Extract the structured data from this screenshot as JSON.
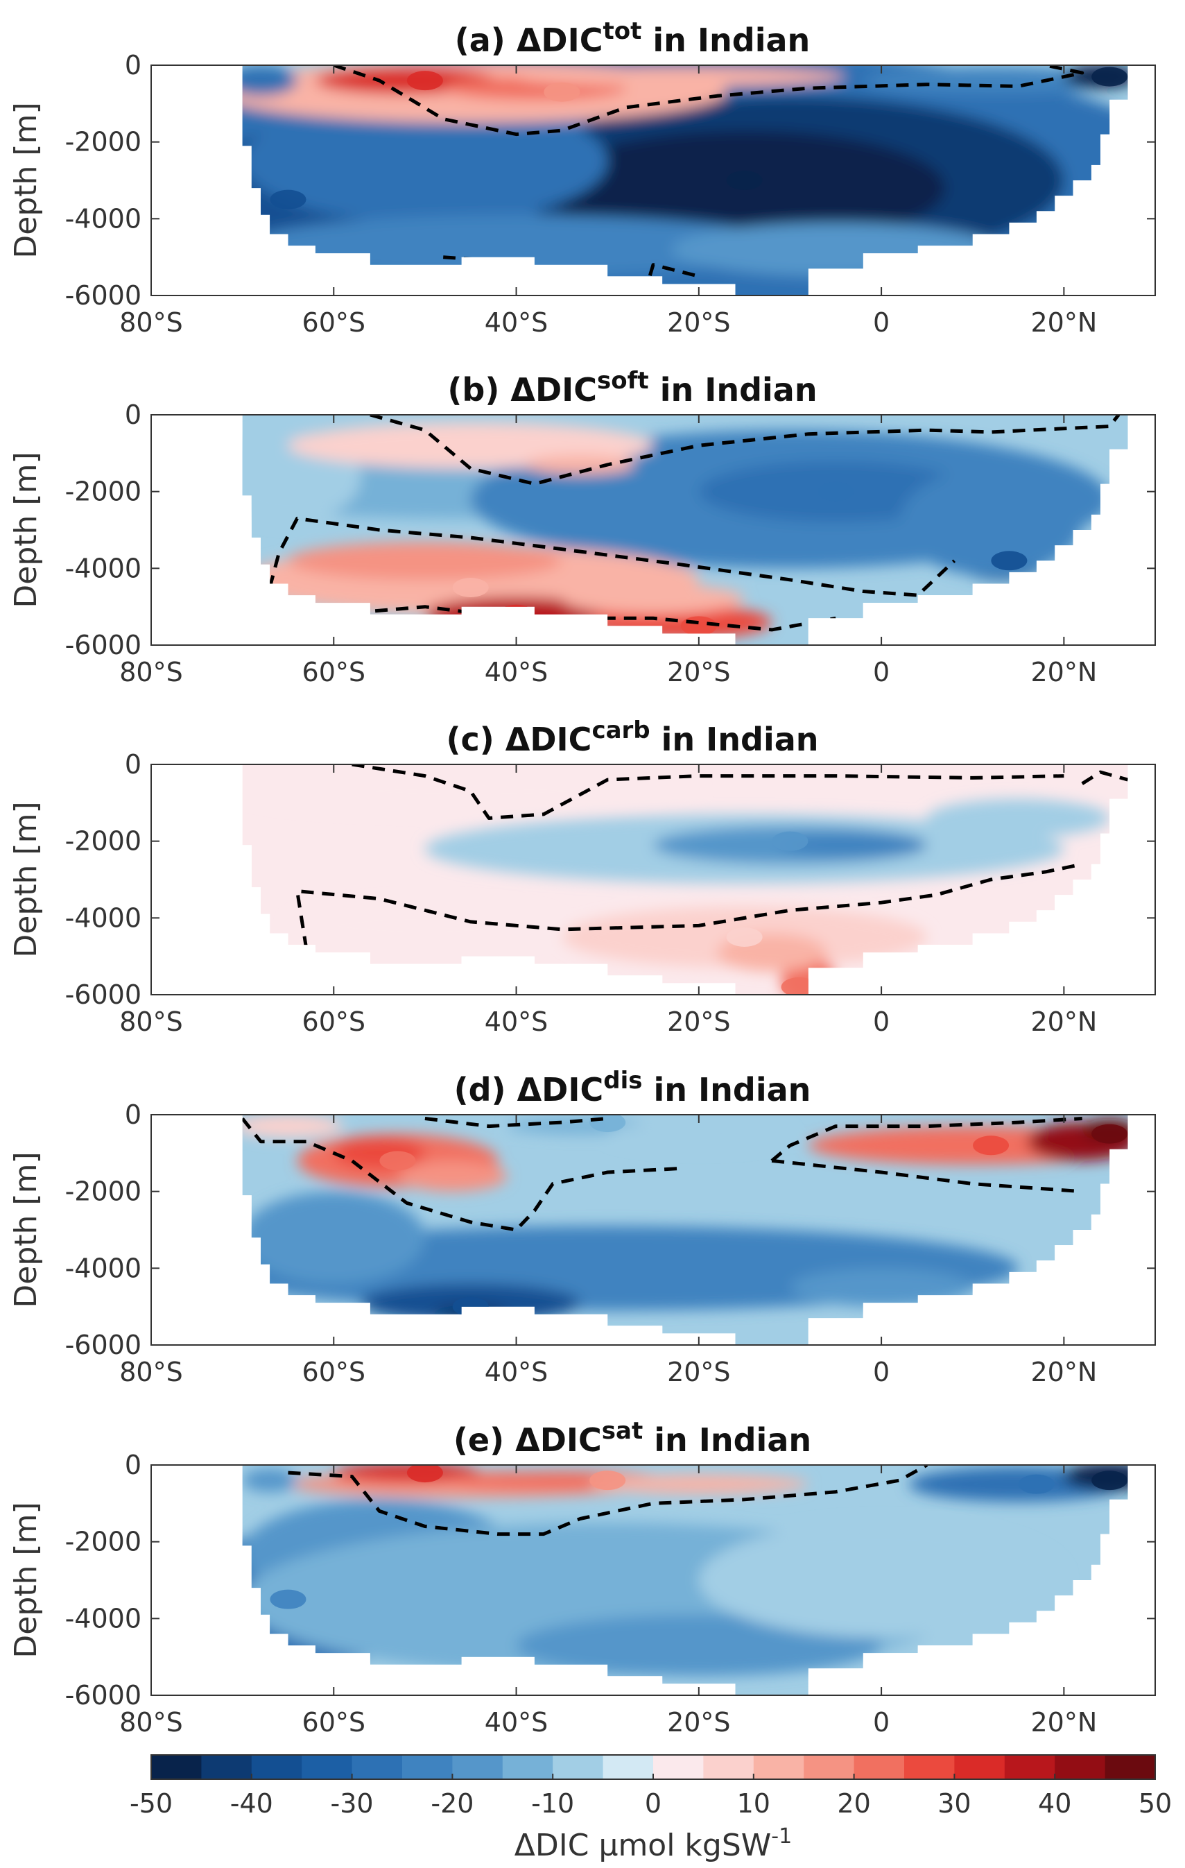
{
  "chart_data": [
    {
      "type": "heatmap",
      "panel": "(a)",
      "title": "(a) ΔDIC",
      "title_sup": "tot",
      "title_suffix": " in Indian",
      "ylabel": "Depth [m]",
      "xlim": [
        -80,
        30
      ],
      "ylim": [
        -6000,
        0
      ],
      "x_ticks": [
        "80°S",
        "60°S",
        "40°S",
        "20°S",
        "0",
        "20°N"
      ],
      "y_ticks": [
        "0",
        "-2000",
        "-4000",
        "-6000"
      ],
      "dominant_sign": "negative",
      "zero_contour": "dashed black",
      "features": [
        {
          "lat": -50,
          "depth": -400,
          "value": 30
        },
        {
          "lat": -35,
          "depth": -700,
          "value": 18
        },
        {
          "lat": -15,
          "depth": -3000,
          "value": -50
        },
        {
          "lat": 25,
          "depth": -300,
          "value": -50
        },
        {
          "lat": -65,
          "depth": -3500,
          "value": -40
        }
      ]
    },
    {
      "type": "heatmap",
      "panel": "(b)",
      "title": "(b) ΔDIC",
      "title_sup": "soft",
      "title_suffix": " in Indian",
      "ylabel": "Depth [m]",
      "xlim": [
        -80,
        30
      ],
      "ylim": [
        -6000,
        0
      ],
      "x_ticks": [
        "80°S",
        "60°S",
        "40°S",
        "20°S",
        "0",
        "20°N"
      ],
      "y_ticks": [
        "0",
        "-2000",
        "-4000",
        "-6000"
      ],
      "dominant_sign": "negative",
      "zero_contour": "dashed black",
      "features": [
        {
          "lat": -40,
          "depth": -5200,
          "value": 30
        },
        {
          "lat": -20,
          "depth": -5500,
          "value": 25
        },
        {
          "lat": -45,
          "depth": -4500,
          "value": 12
        },
        {
          "lat": -5,
          "depth": -2000,
          "value": -28
        },
        {
          "lat": 14,
          "depth": -3800,
          "value": -40
        }
      ]
    },
    {
      "type": "heatmap",
      "panel": "(c)",
      "title": "(c) ΔDIC",
      "title_sup": "carb",
      "title_suffix": " in Indian",
      "ylabel": "Depth [m]",
      "xlim": [
        -80,
        30
      ],
      "ylim": [
        -6000,
        0
      ],
      "x_ticks": [
        "80°S",
        "60°S",
        "40°S",
        "20°S",
        "0",
        "20°N"
      ],
      "y_ticks": [
        "0",
        "-2000",
        "-4000",
        "-6000"
      ],
      "dominant_sign": "weak",
      "zero_contour": "dashed black",
      "features": [
        {
          "lat": -10,
          "depth": -2000,
          "value": -18
        },
        {
          "lat": -9,
          "depth": -5800,
          "value": 20
        },
        {
          "lat": -15,
          "depth": -4500,
          "value": 8
        }
      ]
    },
    {
      "type": "heatmap",
      "panel": "(d)",
      "title": "(d) ΔDIC",
      "title_sup": "dis",
      "title_suffix": " in Indian",
      "ylabel": "Depth [m]",
      "xlim": [
        -80,
        30
      ],
      "ylim": [
        -6000,
        0
      ],
      "x_ticks": [
        "80°S",
        "60°S",
        "40°S",
        "20°S",
        "0",
        "20°N"
      ],
      "y_ticks": [
        "0",
        "-2000",
        "-4000",
        "-6000"
      ],
      "dominant_sign": "negative",
      "zero_contour": "dashed black",
      "features": [
        {
          "lat": -53,
          "depth": -1200,
          "value": 22
        },
        {
          "lat": 25,
          "depth": -500,
          "value": 45
        },
        {
          "lat": 12,
          "depth": -800,
          "value": 25
        },
        {
          "lat": -45,
          "depth": -5000,
          "value": -40
        },
        {
          "lat": -30,
          "depth": -200,
          "value": -12
        }
      ]
    },
    {
      "type": "heatmap",
      "panel": "(e)",
      "title": "(e) ΔDIC",
      "title_sup": "sat",
      "title_suffix": " in Indian",
      "ylabel": "Depth [m]",
      "xlim": [
        -80,
        30
      ],
      "ylim": [
        -6000,
        0
      ],
      "x_ticks": [
        "80°S",
        "60°S",
        "40°S",
        "20°S",
        "0",
        "20°N"
      ],
      "y_ticks": [
        "0",
        "-2000",
        "-4000",
        "-6000"
      ],
      "dominant_sign": "negative",
      "zero_contour": "dashed black",
      "features": [
        {
          "lat": -50,
          "depth": -200,
          "value": 30
        },
        {
          "lat": -30,
          "depth": -400,
          "value": 15
        },
        {
          "lat": 25,
          "depth": -400,
          "value": -50
        },
        {
          "lat": 17,
          "depth": -500,
          "value": -30
        },
        {
          "lat": -65,
          "depth": -3500,
          "value": -25
        }
      ]
    }
  ],
  "colorbar": {
    "ticks": [
      "-50",
      "-40",
      "-30",
      "-20",
      "-10",
      "0",
      "10",
      "20",
      "30",
      "40",
      "50"
    ],
    "label": "ΔDIC μmol kgSW",
    "label_sup": "-1",
    "range": [
      -50,
      50
    ],
    "levels": 20,
    "colors": [
      "#08234b",
      "#0d3a72",
      "#134f92",
      "#1c5fa5",
      "#2d71b4",
      "#3f83c0",
      "#5596ca",
      "#76b1d7",
      "#a2cee5",
      "#d3e9f4",
      "#fbe9ec",
      "#fbd1cd",
      "#f9b3a6",
      "#f59383",
      "#f17060",
      "#eb4a3e",
      "#da2b28",
      "#b8171c",
      "#930d14",
      "#6b0a0f"
    ]
  }
}
